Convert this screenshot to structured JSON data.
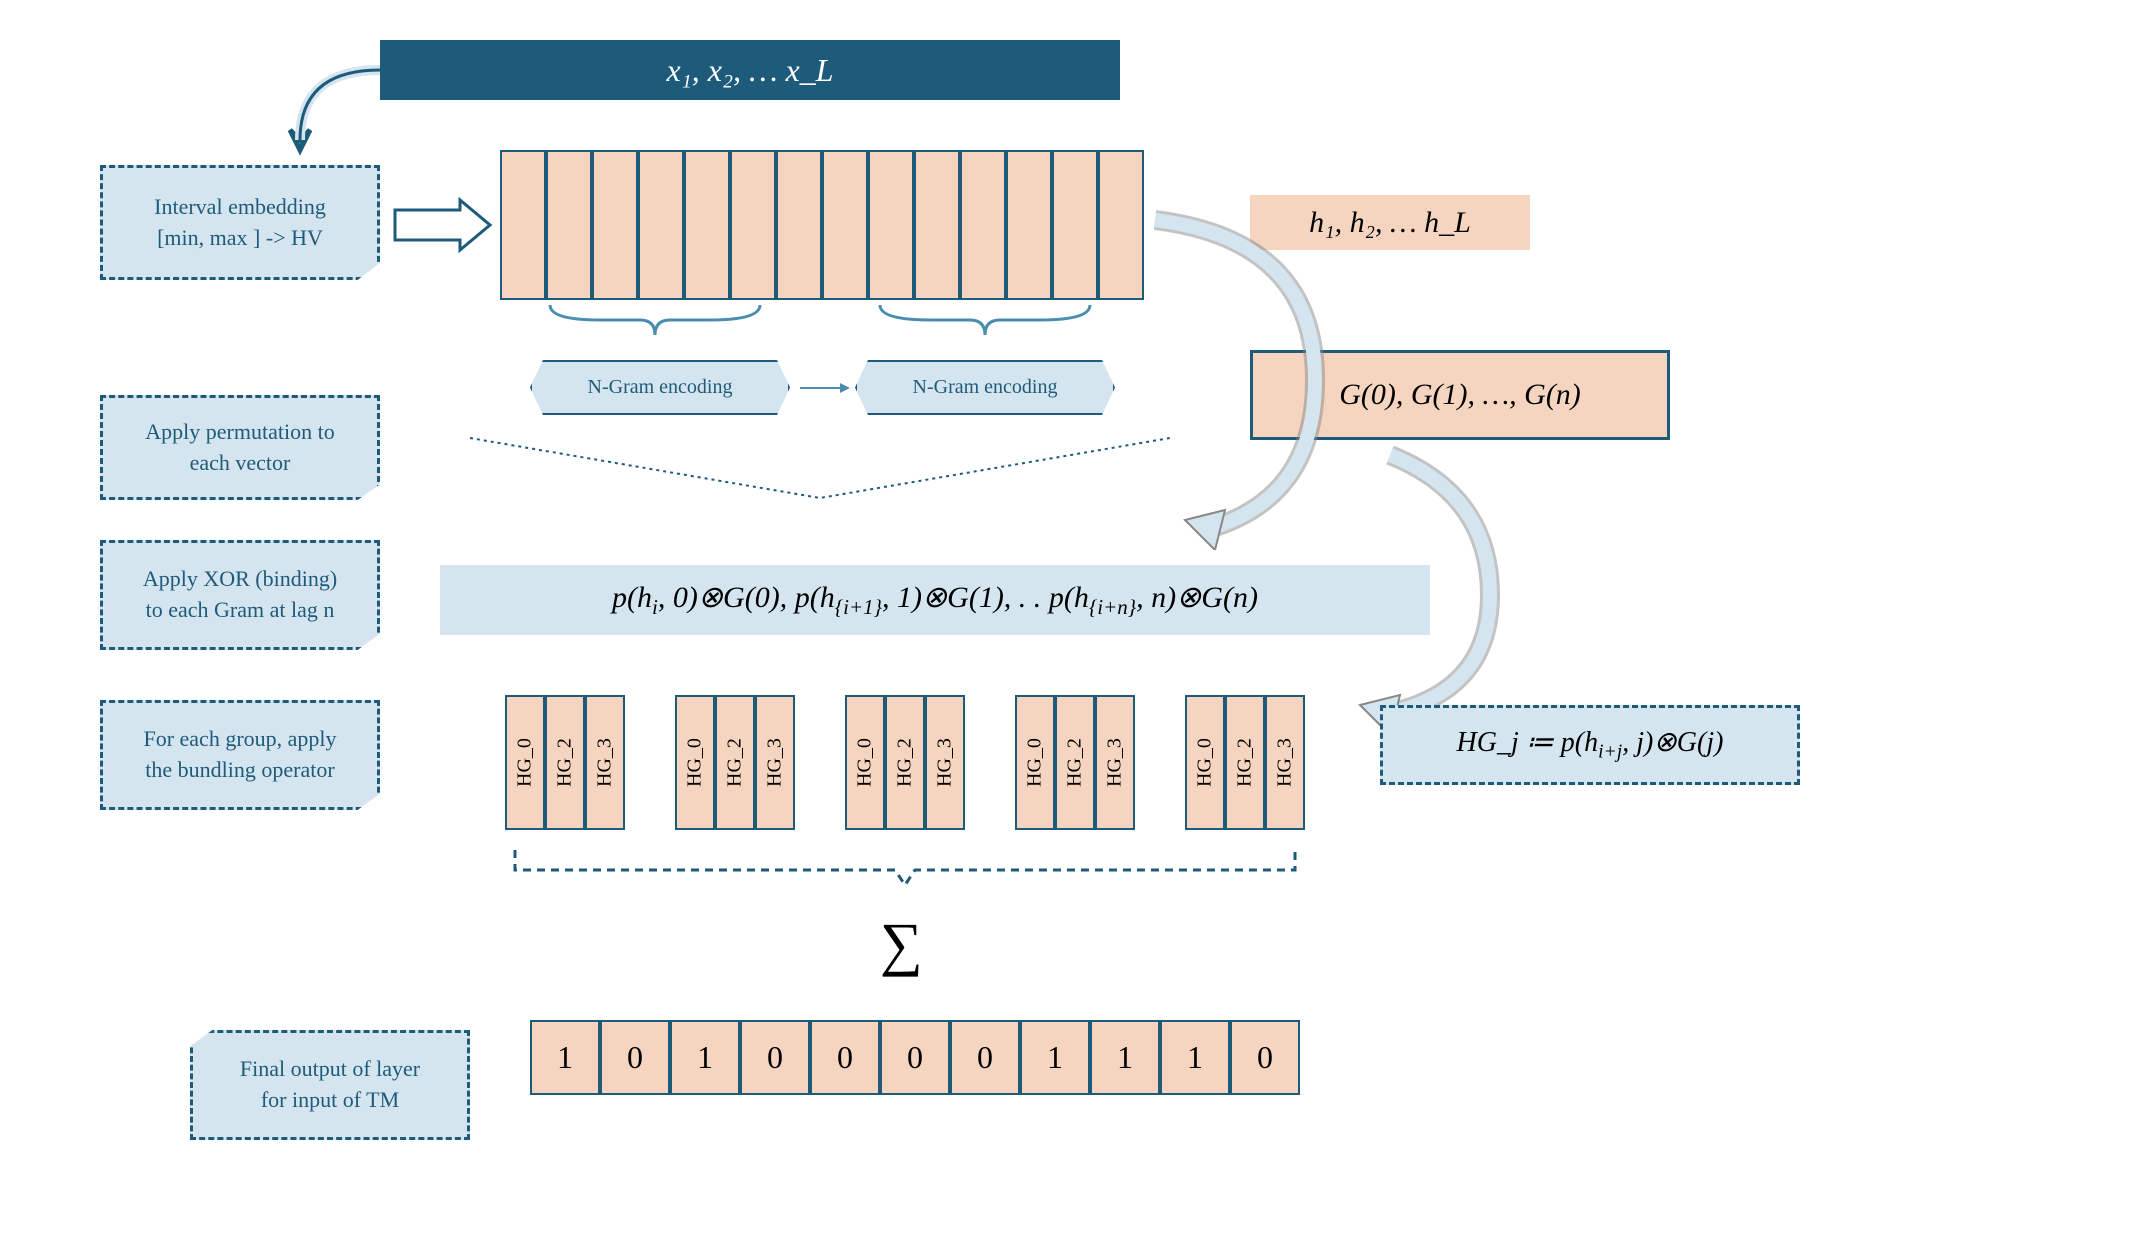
{
  "top_sequence": "x₁, x₂, … x_L",
  "sidebar": {
    "embedding": "Interval embedding\n[min, max ] -> HV",
    "permutation": "Apply permutation to each vector",
    "xor": "Apply XOR (binding) to each Gram at lag n",
    "bundling": "For each group, apply the bundling operator",
    "output": "Final output of layer for input of TM"
  },
  "ngram_label": "N-Gram encoding",
  "h_sequence": "h₁, h₂, … h_L",
  "g_sequence": "G(0), G(1), …, G(n)",
  "binding_formula": "p(hᵢ, 0)⊗G(0), p(h_{i+1}, 1)⊗G(1), . . p(h_{i+n}, n)⊗G(n)",
  "hg_definition": "HG_j ≔ p(h_{i+j}, j)⊗G(j)",
  "hg_labels": [
    "HG_0",
    "HG_2",
    "HG_3"
  ],
  "output_bits": [
    "1",
    "0",
    "1",
    "0",
    "0",
    "0",
    "0",
    "1",
    "1",
    "1",
    "0"
  ],
  "sigma": "∑",
  "colors": {
    "dark_teal": "#1e5a7a",
    "light_blue": "#d4e5ef",
    "peach": "#f5d5c0",
    "white": "#ffffff"
  },
  "layout": {
    "hv_cells": 14,
    "hg_groups": 5
  }
}
